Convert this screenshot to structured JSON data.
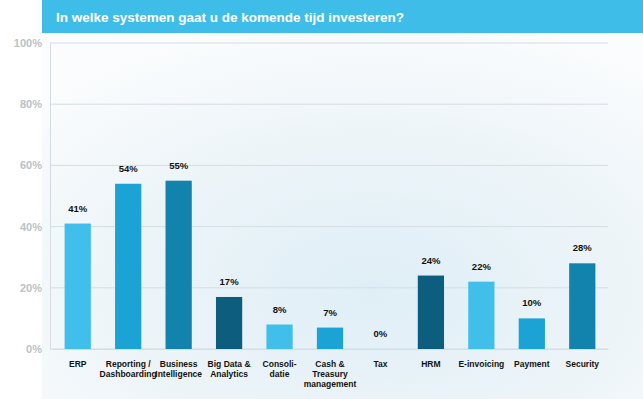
{
  "chart_data": {
    "type": "bar",
    "title": "In welke systemen gaat u de komende tijd investeren?",
    "categories": [
      "ERP",
      "Reporting /\nDashboarding",
      "Business\nIntelligence",
      "Big Data &\nAnalytics",
      "Consoli-\ndatie",
      "Cash &\nTreasury\nmanagement",
      "Tax",
      "HRM",
      "E-invoicing",
      "Payment",
      "Security"
    ],
    "values": [
      41,
      54,
      55,
      17,
      8,
      7,
      0,
      24,
      22,
      10,
      28
    ],
    "value_labels": [
      "41%",
      "54%",
      "55%",
      "17%",
      "8%",
      "7%",
      "0%",
      "24%",
      "22%",
      "10%",
      "28%"
    ],
    "colors": [
      "#3fbfea",
      "#1ba3d6",
      "#1183ad",
      "#0d5d7e",
      "#3fbfea",
      "#1ba3d6",
      "#1183ad",
      "#0d5d7e",
      "#3fbfea",
      "#1ba3d6",
      "#1183ad"
    ],
    "ylim": [
      0,
      100
    ],
    "yticks": [
      {
        "value": 0,
        "label": "0%"
      },
      {
        "value": 20,
        "label": "20%"
      },
      {
        "value": 40,
        "label": "40%"
      },
      {
        "value": 60,
        "label": "60%"
      },
      {
        "value": 80,
        "label": "80%"
      },
      {
        "value": 100,
        "label": "100%"
      }
    ],
    "grid": true,
    "data_labels": true
  }
}
